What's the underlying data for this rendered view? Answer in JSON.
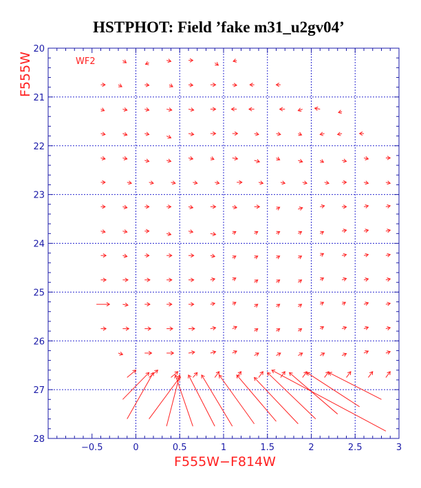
{
  "chart_data": {
    "type": "quiver",
    "title": "HSTPHOT: Field ’fake m31_u2gv04’",
    "xlabel": "F555W−F814W",
    "ylabel": "F555W",
    "annotation": "WF2",
    "xlim": [
      -1.0,
      3.0
    ],
    "ylim": [
      28,
      20
    ],
    "x_major_ticks": [
      -0.5,
      0,
      0.5,
      1,
      1.5,
      2,
      2.5,
      3
    ],
    "x_tick_labels": [
      "−0.5",
      "0",
      "0.5",
      "1",
      "1.5",
      "2",
      "2.5",
      "3"
    ],
    "y_major_ticks": [
      20,
      21,
      22,
      23,
      24,
      25,
      26,
      27,
      28
    ],
    "y_tick_labels": [
      "20",
      "21",
      "22",
      "23",
      "24",
      "25",
      "26",
      "27",
      "28"
    ],
    "x_gridlines": [
      0,
      0.5,
      1,
      1.5,
      2,
      2.5
    ],
    "y_gridlines": [
      21,
      22,
      23,
      24,
      25,
      26,
      27
    ],
    "grid": true,
    "colors": {
      "frame": "#1a1aa8",
      "grid": "#2a2ad0",
      "vectors": "#ff2020",
      "title": "#000000",
      "labels": "#ff2020"
    },
    "vectors": [
      {
        "x": -0.15,
        "y": 20.25,
        "dx": 0.04,
        "dy": 0.05
      },
      {
        "x": 0.15,
        "y": 20.3,
        "dx": -0.04,
        "dy": 0.03
      },
      {
        "x": 0.35,
        "y": 20.25,
        "dx": 0.05,
        "dy": 0.02
      },
      {
        "x": 0.6,
        "y": 20.25,
        "dx": 0.05,
        "dy": 0.0
      },
      {
        "x": 0.9,
        "y": 20.3,
        "dx": 0.04,
        "dy": 0.05
      },
      {
        "x": 1.15,
        "y": 20.25,
        "dx": -0.04,
        "dy": 0.02
      },
      {
        "x": -0.4,
        "y": 20.75,
        "dx": 0.05,
        "dy": 0.0
      },
      {
        "x": -0.2,
        "y": 20.75,
        "dx": 0.04,
        "dy": 0.04
      },
      {
        "x": 0.1,
        "y": 20.75,
        "dx": 0.05,
        "dy": 0.01
      },
      {
        "x": 0.38,
        "y": 20.75,
        "dx": 0.04,
        "dy": 0.04
      },
      {
        "x": 0.6,
        "y": 20.75,
        "dx": 0.05,
        "dy": 0.01
      },
      {
        "x": 0.85,
        "y": 20.75,
        "dx": 0.06,
        "dy": 0.0
      },
      {
        "x": 1.1,
        "y": 20.75,
        "dx": 0.05,
        "dy": 0.01
      },
      {
        "x": 1.35,
        "y": 20.75,
        "dx": -0.05,
        "dy": 0.0
      },
      {
        "x": 1.65,
        "y": 20.75,
        "dx": -0.05,
        "dy": 0.0
      },
      {
        "x": -0.4,
        "y": 21.25,
        "dx": 0.04,
        "dy": 0.03
      },
      {
        "x": -0.15,
        "y": 21.25,
        "dx": 0.05,
        "dy": 0.02
      },
      {
        "x": 0.1,
        "y": 21.25,
        "dx": 0.05,
        "dy": 0.02
      },
      {
        "x": 0.35,
        "y": 21.25,
        "dx": 0.06,
        "dy": 0.02
      },
      {
        "x": 0.6,
        "y": 21.25,
        "dx": 0.06,
        "dy": 0.02
      },
      {
        "x": 0.85,
        "y": 21.25,
        "dx": 0.06,
        "dy": 0.0
      },
      {
        "x": 1.15,
        "y": 21.25,
        "dx": -0.06,
        "dy": 0.0
      },
      {
        "x": 1.35,
        "y": 21.25,
        "dx": -0.06,
        "dy": 0.0
      },
      {
        "x": 1.7,
        "y": 21.25,
        "dx": -0.06,
        "dy": 0.0
      },
      {
        "x": 1.9,
        "y": 21.25,
        "dx": -0.05,
        "dy": 0.03
      },
      {
        "x": 2.1,
        "y": 21.25,
        "dx": -0.06,
        "dy": -0.02
      },
      {
        "x": 2.35,
        "y": 21.3,
        "dx": -0.04,
        "dy": 0.02
      },
      {
        "x": -0.4,
        "y": 21.75,
        "dx": 0.05,
        "dy": 0.02
      },
      {
        "x": -0.15,
        "y": 21.75,
        "dx": 0.05,
        "dy": 0.03
      },
      {
        "x": 0.1,
        "y": 21.75,
        "dx": 0.05,
        "dy": 0.02
      },
      {
        "x": 0.35,
        "y": 21.8,
        "dx": 0.05,
        "dy": 0.04
      },
      {
        "x": 0.6,
        "y": 21.75,
        "dx": 0.06,
        "dy": 0.02
      },
      {
        "x": 0.85,
        "y": 21.75,
        "dx": 0.06,
        "dy": 0.0
      },
      {
        "x": 1.1,
        "y": 21.75,
        "dx": 0.06,
        "dy": 0.0
      },
      {
        "x": 1.35,
        "y": 21.75,
        "dx": 0.05,
        "dy": 0.02
      },
      {
        "x": 1.6,
        "y": 21.75,
        "dx": 0.05,
        "dy": 0.02
      },
      {
        "x": 1.85,
        "y": 21.75,
        "dx": 0.04,
        "dy": 0.03
      },
      {
        "x": 2.15,
        "y": 21.75,
        "dx": -0.05,
        "dy": 0.02
      },
      {
        "x": 2.35,
        "y": 21.75,
        "dx": -0.05,
        "dy": 0.02
      },
      {
        "x": 2.6,
        "y": 21.75,
        "dx": -0.05,
        "dy": 0.0
      },
      {
        "x": -0.4,
        "y": 22.25,
        "dx": 0.05,
        "dy": 0.02
      },
      {
        "x": -0.15,
        "y": 22.25,
        "dx": 0.05,
        "dy": 0.02
      },
      {
        "x": 0.1,
        "y": 22.3,
        "dx": 0.05,
        "dy": 0.02
      },
      {
        "x": 0.35,
        "y": 22.3,
        "dx": 0.05,
        "dy": 0.02
      },
      {
        "x": 0.6,
        "y": 22.25,
        "dx": 0.05,
        "dy": 0.02
      },
      {
        "x": 0.85,
        "y": 22.25,
        "dx": 0.04,
        "dy": 0.03
      },
      {
        "x": 1.1,
        "y": 22.25,
        "dx": 0.06,
        "dy": 0.02
      },
      {
        "x": 1.35,
        "y": 22.3,
        "dx": 0.06,
        "dy": 0.03
      },
      {
        "x": 1.6,
        "y": 22.25,
        "dx": 0.04,
        "dy": 0.04
      },
      {
        "x": 1.85,
        "y": 22.3,
        "dx": 0.05,
        "dy": 0.03
      },
      {
        "x": 2.1,
        "y": 22.3,
        "dx": 0.04,
        "dy": 0.04
      },
      {
        "x": 2.35,
        "y": 22.3,
        "dx": 0.05,
        "dy": 0.02
      },
      {
        "x": 2.6,
        "y": 22.25,
        "dx": 0.05,
        "dy": 0.02
      },
      {
        "x": 2.85,
        "y": 22.25,
        "dx": 0.05,
        "dy": 0.0
      },
      {
        "x": -0.4,
        "y": 22.75,
        "dx": 0.05,
        "dy": 0.0
      },
      {
        "x": -0.1,
        "y": 22.75,
        "dx": 0.05,
        "dy": 0.02
      },
      {
        "x": 0.15,
        "y": 22.75,
        "dx": 0.05,
        "dy": 0.02
      },
      {
        "x": 0.4,
        "y": 22.75,
        "dx": 0.05,
        "dy": 0.02
      },
      {
        "x": 0.65,
        "y": 22.75,
        "dx": 0.05,
        "dy": 0.02
      },
      {
        "x": 0.9,
        "y": 22.75,
        "dx": 0.05,
        "dy": 0.02
      },
      {
        "x": 1.15,
        "y": 22.75,
        "dx": 0.06,
        "dy": 0.0
      },
      {
        "x": 1.4,
        "y": 22.75,
        "dx": 0.05,
        "dy": 0.02
      },
      {
        "x": 1.65,
        "y": 22.75,
        "dx": 0.05,
        "dy": 0.02
      },
      {
        "x": 1.9,
        "y": 22.75,
        "dx": 0.05,
        "dy": 0.02
      },
      {
        "x": 2.15,
        "y": 22.75,
        "dx": 0.05,
        "dy": 0.02
      },
      {
        "x": 2.35,
        "y": 22.75,
        "dx": 0.05,
        "dy": 0.0
      },
      {
        "x": 2.6,
        "y": 22.75,
        "dx": 0.05,
        "dy": 0.02
      },
      {
        "x": 2.85,
        "y": 22.75,
        "dx": 0.05,
        "dy": 0.02
      },
      {
        "x": -0.4,
        "y": 23.25,
        "dx": 0.05,
        "dy": 0.0
      },
      {
        "x": -0.15,
        "y": 23.25,
        "dx": 0.05,
        "dy": 0.02
      },
      {
        "x": 0.1,
        "y": 23.25,
        "dx": 0.05,
        "dy": 0.0
      },
      {
        "x": 0.35,
        "y": 23.25,
        "dx": 0.05,
        "dy": 0.0
      },
      {
        "x": 0.6,
        "y": 23.25,
        "dx": 0.05,
        "dy": 0.02
      },
      {
        "x": 0.85,
        "y": 23.25,
        "dx": 0.06,
        "dy": 0.0
      },
      {
        "x": 1.1,
        "y": 23.25,
        "dx": 0.05,
        "dy": 0.02
      },
      {
        "x": 1.35,
        "y": 23.25,
        "dx": 0.06,
        "dy": 0.0
      },
      {
        "x": 1.6,
        "y": 23.3,
        "dx": 0.04,
        "dy": -0.04
      },
      {
        "x": 1.85,
        "y": 23.3,
        "dx": 0.05,
        "dy": -0.03
      },
      {
        "x": 2.1,
        "y": 23.25,
        "dx": 0.05,
        "dy": -0.02
      },
      {
        "x": 2.35,
        "y": 23.25,
        "dx": 0.05,
        "dy": 0.0
      },
      {
        "x": 2.6,
        "y": 23.25,
        "dx": 0.05,
        "dy": -0.02
      },
      {
        "x": 2.85,
        "y": 23.25,
        "dx": 0.05,
        "dy": -0.02
      },
      {
        "x": -0.4,
        "y": 23.75,
        "dx": 0.05,
        "dy": 0.02
      },
      {
        "x": -0.15,
        "y": 23.75,
        "dx": 0.05,
        "dy": 0.02
      },
      {
        "x": 0.1,
        "y": 23.75,
        "dx": 0.05,
        "dy": 0.0
      },
      {
        "x": 0.35,
        "y": 23.8,
        "dx": 0.05,
        "dy": 0.02
      },
      {
        "x": 0.6,
        "y": 23.75,
        "dx": 0.05,
        "dy": 0.02
      },
      {
        "x": 0.85,
        "y": 23.8,
        "dx": 0.06,
        "dy": 0.02
      },
      {
        "x": 1.1,
        "y": 23.8,
        "dx": 0.04,
        "dy": -0.04
      },
      {
        "x": 1.35,
        "y": 23.8,
        "dx": 0.04,
        "dy": -0.04
      },
      {
        "x": 1.6,
        "y": 23.8,
        "dx": 0.04,
        "dy": -0.04
      },
      {
        "x": 1.85,
        "y": 23.8,
        "dx": 0.04,
        "dy": -0.04
      },
      {
        "x": 2.1,
        "y": 23.8,
        "dx": 0.04,
        "dy": -0.04
      },
      {
        "x": 2.35,
        "y": 23.75,
        "dx": 0.05,
        "dy": -0.02
      },
      {
        "x": 2.6,
        "y": 23.75,
        "dx": 0.05,
        "dy": -0.02
      },
      {
        "x": 2.85,
        "y": 23.75,
        "dx": 0.05,
        "dy": -0.02
      },
      {
        "x": -0.4,
        "y": 24.25,
        "dx": 0.06,
        "dy": 0.0
      },
      {
        "x": -0.15,
        "y": 24.25,
        "dx": 0.05,
        "dy": 0.02
      },
      {
        "x": 0.1,
        "y": 24.25,
        "dx": 0.05,
        "dy": 0.0
      },
      {
        "x": 0.35,
        "y": 24.25,
        "dx": 0.06,
        "dy": 0.0
      },
      {
        "x": 0.6,
        "y": 24.25,
        "dx": 0.06,
        "dy": 0.0
      },
      {
        "x": 0.85,
        "y": 24.25,
        "dx": 0.05,
        "dy": 0.02
      },
      {
        "x": 1.1,
        "y": 24.3,
        "dx": 0.04,
        "dy": -0.04
      },
      {
        "x": 1.35,
        "y": 24.3,
        "dx": 0.04,
        "dy": -0.04
      },
      {
        "x": 1.6,
        "y": 24.3,
        "dx": 0.04,
        "dy": -0.04
      },
      {
        "x": 1.85,
        "y": 24.3,
        "dx": 0.04,
        "dy": -0.04
      },
      {
        "x": 2.1,
        "y": 24.25,
        "dx": 0.04,
        "dy": -0.04
      },
      {
        "x": 2.35,
        "y": 24.25,
        "dx": 0.05,
        "dy": -0.02
      },
      {
        "x": 2.6,
        "y": 24.25,
        "dx": 0.05,
        "dy": -0.02
      },
      {
        "x": 2.85,
        "y": 24.25,
        "dx": 0.05,
        "dy": -0.02
      },
      {
        "x": -0.4,
        "y": 24.75,
        "dx": 0.06,
        "dy": 0.0
      },
      {
        "x": -0.15,
        "y": 24.75,
        "dx": 0.06,
        "dy": 0.0
      },
      {
        "x": 0.1,
        "y": 24.75,
        "dx": 0.06,
        "dy": 0.0
      },
      {
        "x": 0.35,
        "y": 24.75,
        "dx": 0.06,
        "dy": 0.0
      },
      {
        "x": 0.6,
        "y": 24.75,
        "dx": 0.06,
        "dy": 0.0
      },
      {
        "x": 0.85,
        "y": 24.75,
        "dx": 0.05,
        "dy": -0.02
      },
      {
        "x": 1.1,
        "y": 24.75,
        "dx": 0.04,
        "dy": -0.04
      },
      {
        "x": 1.35,
        "y": 24.8,
        "dx": 0.04,
        "dy": -0.05
      },
      {
        "x": 1.6,
        "y": 24.8,
        "dx": 0.04,
        "dy": -0.05
      },
      {
        "x": 1.85,
        "y": 24.8,
        "dx": 0.04,
        "dy": -0.05
      },
      {
        "x": 2.1,
        "y": 24.75,
        "dx": 0.04,
        "dy": -0.04
      },
      {
        "x": 2.35,
        "y": 24.75,
        "dx": 0.05,
        "dy": -0.03
      },
      {
        "x": 2.6,
        "y": 24.75,
        "dx": 0.05,
        "dy": -0.02
      },
      {
        "x": 2.85,
        "y": 24.75,
        "dx": 0.05,
        "dy": -0.02
      },
      {
        "x": -0.45,
        "y": 25.25,
        "dx": 0.15,
        "dy": 0.0
      },
      {
        "x": -0.15,
        "y": 25.25,
        "dx": 0.06,
        "dy": 0.02
      },
      {
        "x": 0.1,
        "y": 25.25,
        "dx": 0.06,
        "dy": 0.0
      },
      {
        "x": 0.35,
        "y": 25.25,
        "dx": 0.06,
        "dy": 0.0
      },
      {
        "x": 0.6,
        "y": 25.25,
        "dx": 0.06,
        "dy": 0.0
      },
      {
        "x": 0.85,
        "y": 25.25,
        "dx": 0.05,
        "dy": -0.02
      },
      {
        "x": 1.1,
        "y": 25.25,
        "dx": 0.04,
        "dy": -0.04
      },
      {
        "x": 1.35,
        "y": 25.3,
        "dx": 0.04,
        "dy": -0.05
      },
      {
        "x": 1.6,
        "y": 25.3,
        "dx": 0.04,
        "dy": -0.05
      },
      {
        "x": 1.85,
        "y": 25.3,
        "dx": 0.04,
        "dy": -0.05
      },
      {
        "x": 2.1,
        "y": 25.25,
        "dx": 0.04,
        "dy": -0.04
      },
      {
        "x": 2.35,
        "y": 25.25,
        "dx": 0.04,
        "dy": -0.04
      },
      {
        "x": 2.6,
        "y": 25.25,
        "dx": 0.05,
        "dy": -0.03
      },
      {
        "x": 2.85,
        "y": 25.25,
        "dx": 0.05,
        "dy": -0.02
      },
      {
        "x": -0.4,
        "y": 25.75,
        "dx": 0.06,
        "dy": 0.0
      },
      {
        "x": -0.15,
        "y": 25.75,
        "dx": 0.07,
        "dy": 0.0
      },
      {
        "x": 0.1,
        "y": 25.75,
        "dx": 0.07,
        "dy": 0.0
      },
      {
        "x": 0.35,
        "y": 25.75,
        "dx": 0.07,
        "dy": 0.0
      },
      {
        "x": 0.6,
        "y": 25.75,
        "dx": 0.07,
        "dy": 0.0
      },
      {
        "x": 0.85,
        "y": 25.75,
        "dx": 0.06,
        "dy": -0.02
      },
      {
        "x": 1.1,
        "y": 25.75,
        "dx": 0.05,
        "dy": -0.04
      },
      {
        "x": 1.35,
        "y": 25.8,
        "dx": 0.04,
        "dy": -0.05
      },
      {
        "x": 1.6,
        "y": 25.8,
        "dx": 0.04,
        "dy": -0.05
      },
      {
        "x": 1.85,
        "y": 25.8,
        "dx": 0.04,
        "dy": -0.05
      },
      {
        "x": 2.1,
        "y": 25.75,
        "dx": 0.04,
        "dy": -0.04
      },
      {
        "x": 2.35,
        "y": 25.75,
        "dx": 0.05,
        "dy": -0.03
      },
      {
        "x": 2.6,
        "y": 25.75,
        "dx": 0.05,
        "dy": -0.03
      },
      {
        "x": 2.85,
        "y": 25.75,
        "dx": 0.05,
        "dy": -0.02
      },
      {
        "x": -0.2,
        "y": 26.25,
        "dx": 0.05,
        "dy": 0.03
      },
      {
        "x": 0.1,
        "y": 26.25,
        "dx": 0.08,
        "dy": 0.0
      },
      {
        "x": 0.35,
        "y": 26.25,
        "dx": 0.08,
        "dy": 0.0
      },
      {
        "x": 0.6,
        "y": 26.25,
        "dx": 0.07,
        "dy": -0.02
      },
      {
        "x": 0.85,
        "y": 26.25,
        "dx": 0.06,
        "dy": -0.03
      },
      {
        "x": 1.1,
        "y": 26.25,
        "dx": 0.05,
        "dy": -0.04
      },
      {
        "x": 1.35,
        "y": 26.3,
        "dx": 0.05,
        "dy": -0.05
      },
      {
        "x": 1.6,
        "y": 26.3,
        "dx": 0.05,
        "dy": -0.05
      },
      {
        "x": 1.85,
        "y": 26.3,
        "dx": 0.05,
        "dy": -0.05
      },
      {
        "x": 2.1,
        "y": 26.3,
        "dx": 0.05,
        "dy": -0.05
      },
      {
        "x": 2.35,
        "y": 26.3,
        "dx": 0.05,
        "dy": -0.04
      },
      {
        "x": 2.6,
        "y": 26.25,
        "dx": 0.05,
        "dy": -0.04
      },
      {
        "x": 2.85,
        "y": 26.25,
        "dx": 0.05,
        "dy": -0.03
      },
      {
        "x": -0.1,
        "y": 26.75,
        "dx": 0.1,
        "dy": -0.15
      },
      {
        "x": 0.15,
        "y": 26.75,
        "dx": 0.1,
        "dy": -0.15
      },
      {
        "x": 0.4,
        "y": 26.75,
        "dx": 0.08,
        "dy": -0.12
      },
      {
        "x": 0.65,
        "y": 26.75,
        "dx": 0.05,
        "dy": -0.1
      },
      {
        "x": 0.9,
        "y": 26.75,
        "dx": 0.05,
        "dy": -0.12
      },
      {
        "x": 1.15,
        "y": 26.75,
        "dx": 0.05,
        "dy": -0.12
      },
      {
        "x": 1.4,
        "y": 26.75,
        "dx": 0.05,
        "dy": -0.12
      },
      {
        "x": 1.65,
        "y": 26.75,
        "dx": 0.05,
        "dy": -0.12
      },
      {
        "x": 1.9,
        "y": 26.75,
        "dx": 0.05,
        "dy": -0.12
      },
      {
        "x": 2.15,
        "y": 26.75,
        "dx": 0.05,
        "dy": -0.12
      },
      {
        "x": 2.4,
        "y": 26.75,
        "dx": 0.05,
        "dy": -0.12
      },
      {
        "x": 2.65,
        "y": 26.75,
        "dx": 0.05,
        "dy": -0.12
      },
      {
        "x": 2.85,
        "y": 26.75,
        "dx": 0.05,
        "dy": -0.12
      },
      {
        "x": -0.15,
        "y": 27.2,
        "dx": 0.3,
        "dy": -0.55
      },
      {
        "x": -0.1,
        "y": 27.6,
        "dx": 0.3,
        "dy": -0.95
      },
      {
        "x": 0.15,
        "y": 27.6,
        "dx": 0.35,
        "dy": -0.85
      },
      {
        "x": 0.35,
        "y": 27.75,
        "dx": 0.15,
        "dy": -1.05
      },
      {
        "x": 0.65,
        "y": 27.75,
        "dx": -0.2,
        "dy": -1.05
      },
      {
        "x": 0.9,
        "y": 27.75,
        "dx": -0.3,
        "dy": -1.05
      },
      {
        "x": 1.1,
        "y": 27.75,
        "dx": -0.35,
        "dy": -1.05
      },
      {
        "x": 1.35,
        "y": 27.7,
        "dx": -0.4,
        "dy": -1.0
      },
      {
        "x": 1.6,
        "y": 27.65,
        "dx": -0.45,
        "dy": -0.95
      },
      {
        "x": 1.85,
        "y": 27.7,
        "dx": -0.5,
        "dy": -0.95
      },
      {
        "x": 2.05,
        "y": 27.6,
        "dx": -0.55,
        "dy": -0.95
      },
      {
        "x": 2.3,
        "y": 27.5,
        "dx": -0.55,
        "dy": -0.85
      },
      {
        "x": 2.55,
        "y": 27.35,
        "dx": -0.6,
        "dy": -0.7
      },
      {
        "x": 2.8,
        "y": 27.2,
        "dx": -0.6,
        "dy": -0.55
      },
      {
        "x": 2.85,
        "y": 27.85,
        "dx": -1.3,
        "dy": -1.25
      }
    ]
  }
}
